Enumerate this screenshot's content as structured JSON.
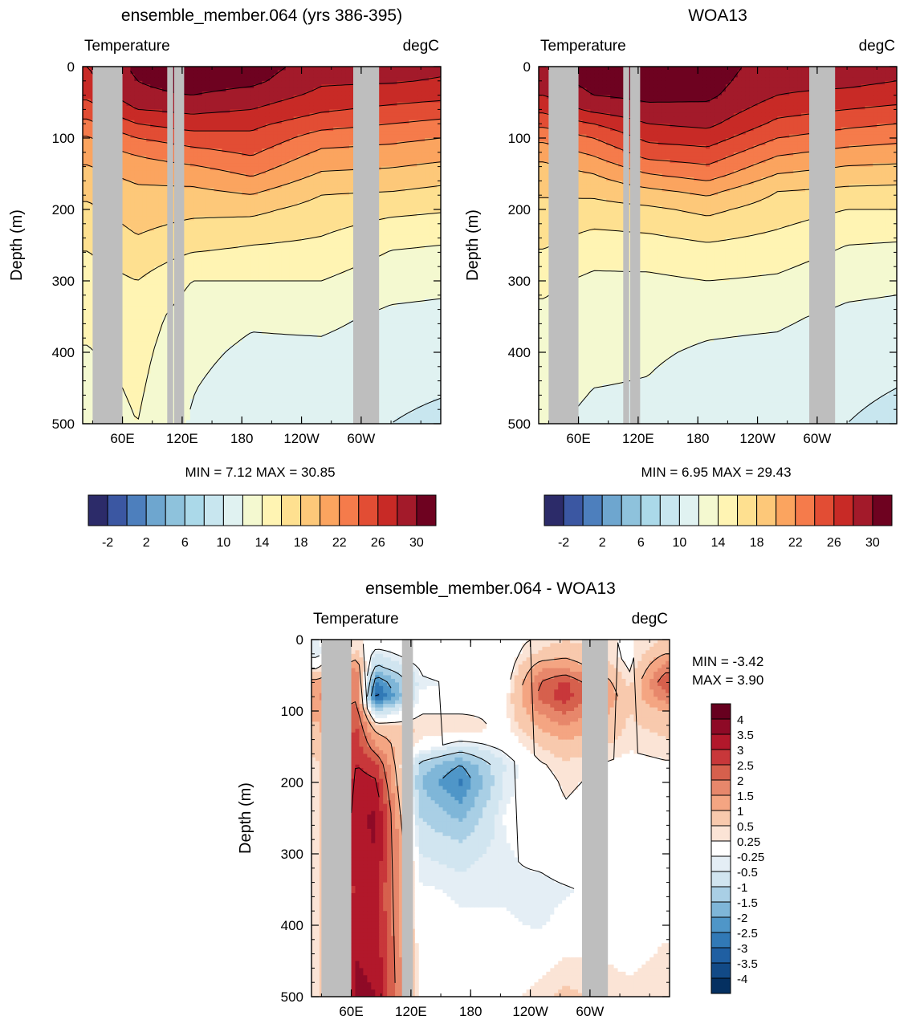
{
  "chart_data": [
    {
      "type": "heatmap",
      "title": "ensemble_member.064 (yrs 386-395)",
      "left_label": "Temperature",
      "right_label": "degC",
      "ylabel": "Depth (m)",
      "y_ticks": [
        "0",
        "100",
        "200",
        "300",
        "400",
        "500"
      ],
      "ylim": [
        0,
        500
      ],
      "y_reversed": true,
      "x_ticks": [
        "60E",
        "120E",
        "180",
        "120W",
        "60W"
      ],
      "x_tick_lon": [
        60,
        120,
        180,
        240,
        300
      ],
      "xlim": [
        20,
        380
      ],
      "stats_text": "MIN =   7.12  MAX =  30.85",
      "min": 7.12,
      "max": 30.85,
      "colorbar_labels": [
        "-2",
        "2",
        "6",
        "10",
        "14",
        "18",
        "22",
        "26",
        "30"
      ],
      "levels": [
        -4,
        -2,
        0,
        2,
        4,
        6,
        8,
        10,
        12,
        14,
        16,
        18,
        20,
        22,
        24,
        26,
        28,
        30
      ],
      "colors": [
        "#2c2b69",
        "#3b57a2",
        "#4d7fbd",
        "#6ea6cf",
        "#8ec2dc",
        "#abd9e9",
        "#c8e6ef",
        "#e0f2f1",
        "#f4f9d0",
        "#fff4b3",
        "#fee090",
        "#fdc879",
        "#fba45f",
        "#f57b4b",
        "#e24d34",
        "#c82a26",
        "#a31a2a",
        "#6e0220"
      ],
      "land_bands_lon": [
        [
          30,
          60
        ],
        [
          105,
          111
        ],
        [
          112,
          122
        ],
        [
          292,
          318
        ]
      ],
      "profile_depth": [
        0,
        20,
        40,
        60,
        80,
        100,
        125,
        150,
        175,
        200,
        250,
        300,
        350,
        400,
        450,
        500
      ],
      "zonal": [
        {
          "lon": 25,
          "temps": [
            26,
            25.5,
            24.5,
            23,
            21.5,
            19.8,
            18.5,
            17.5,
            16.5,
            15.6,
            14.2,
            13,
            12.4,
            11.9,
            11.3,
            10.9
          ]
        },
        {
          "lon": 75,
          "temps": [
            28.5,
            28,
            27.5,
            26,
            24,
            22,
            20,
            18.6,
            17.6,
            17,
            15.6,
            14,
            13,
            12.6,
            12.3,
            12
          ]
        },
        {
          "lon": 130,
          "temps": [
            29.5,
            29,
            28,
            26.5,
            25,
            23,
            21,
            19,
            17.6,
            16.5,
            14.5,
            12,
            11,
            10.5,
            10.1,
            9.8
          ]
        },
        {
          "lon": 190,
          "temps": [
            29,
            28.5,
            27.2,
            26,
            24.5,
            23.5,
            22,
            20.3,
            18.3,
            16.5,
            14,
            12,
            10.3,
            9.6,
            9,
            8.6
          ]
        },
        {
          "lon": 260,
          "temps": [
            27,
            26.3,
            25.5,
            24.3,
            22.8,
            21,
            19.3,
            17.8,
            16.2,
            15.2,
            13.6,
            12,
            10.5,
            9.6,
            9.2,
            8.9
          ]
        },
        {
          "lon": 330,
          "temps": [
            27,
            26.2,
            25,
            23.5,
            22,
            20.5,
            19,
            17.5,
            16,
            14.5,
            12.2,
            10.8,
            9.6,
            9,
            8.5,
            8
          ]
        },
        {
          "lon": 380,
          "temps": [
            26.5,
            25.8,
            24.6,
            23,
            21.5,
            20,
            18.5,
            17,
            15.5,
            14.2,
            12,
            10.6,
            9.4,
            8.8,
            8.2,
            7.5
          ]
        }
      ]
    },
    {
      "type": "heatmap",
      "title": "WOA13",
      "left_label": "Temperature",
      "right_label": "degC",
      "ylabel": "Depth (m)",
      "y_ticks": [
        "0",
        "100",
        "200",
        "300",
        "400",
        "500"
      ],
      "ylim": [
        0,
        500
      ],
      "y_reversed": true,
      "x_ticks": [
        "60E",
        "120E",
        "180",
        "120W",
        "60W"
      ],
      "x_tick_lon": [
        60,
        120,
        180,
        240,
        300
      ],
      "xlim": [
        20,
        380
      ],
      "stats_text": "MIN =   6.95  MAX =  29.43",
      "min": 6.95,
      "max": 29.43,
      "colorbar_labels": [
        "-2",
        "2",
        "6",
        "10",
        "14",
        "18",
        "22",
        "26",
        "30"
      ],
      "levels": [
        -4,
        -2,
        0,
        2,
        4,
        6,
        8,
        10,
        12,
        14,
        16,
        18,
        20,
        22,
        24,
        26,
        28,
        30
      ],
      "colors": [
        "#2c2b69",
        "#3b57a2",
        "#4d7fbd",
        "#6ea6cf",
        "#8ec2dc",
        "#abd9e9",
        "#c8e6ef",
        "#e0f2f1",
        "#f4f9d0",
        "#fff4b3",
        "#fee090",
        "#fdc879",
        "#fba45f",
        "#f57b4b",
        "#e24d34",
        "#c82a26",
        "#a31a2a",
        "#6e0220"
      ],
      "land_bands_lon": [
        [
          30,
          60
        ],
        [
          105,
          111
        ],
        [
          112,
          122
        ],
        [
          292,
          318
        ]
      ],
      "profile_depth": [
        0,
        20,
        40,
        60,
        80,
        100,
        125,
        150,
        175,
        200,
        250,
        300,
        350,
        400,
        450,
        500
      ],
      "zonal": [
        {
          "lon": 25,
          "temps": [
            27.5,
            27,
            26,
            24.5,
            22.5,
            20.5,
            18.5,
            17,
            16.2,
            15.6,
            14.2,
            12.4,
            11.6,
            11,
            10.5,
            10.2
          ]
        },
        {
          "lon": 75,
          "temps": [
            29,
            28.8,
            28,
            26.5,
            24,
            22,
            20,
            18,
            16.5,
            15.2,
            13,
            11.6,
            11,
            10.4,
            10,
            9.7
          ]
        },
        {
          "lon": 130,
          "temps": [
            29.3,
            29,
            28.5,
            27.5,
            26,
            24.5,
            22.5,
            20,
            17.5,
            15.6,
            13.2,
            11.6,
            10.6,
            10.2,
            9.9,
            9.7
          ]
        },
        {
          "lon": 190,
          "temps": [
            29,
            28.8,
            28.4,
            27.5,
            26.5,
            25,
            23,
            21,
            18.5,
            16.5,
            13.8,
            12,
            10.4,
            9.8,
            9.3,
            9
          ]
        },
        {
          "lon": 260,
          "temps": [
            27,
            26.5,
            26,
            24.8,
            23.5,
            22,
            20,
            18,
            16,
            15,
            13.2,
            11.7,
            10.3,
            9.6,
            9.3,
            9
          ]
        },
        {
          "lon": 330,
          "temps": [
            27,
            26.5,
            25.5,
            24,
            22.5,
            21,
            19,
            17.2,
            15.5,
            14,
            12,
            10.6,
            9.6,
            9,
            8.5,
            8
          ]
        },
        {
          "lon": 380,
          "temps": [
            26.5,
            26,
            25,
            23.5,
            22,
            20.5,
            18.8,
            17,
            15.4,
            14,
            11.8,
            10.4,
            9.4,
            8.8,
            8,
            7.3
          ]
        }
      ]
    },
    {
      "type": "heatmap",
      "title": "ensemble_member.064 - WOA13",
      "left_label": "Temperature",
      "right_label": "degC",
      "ylabel": "Depth (m)",
      "y_ticks": [
        "0",
        "100",
        "200",
        "300",
        "400",
        "500"
      ],
      "ylim": [
        0,
        500
      ],
      "y_reversed": true,
      "x_ticks": [
        "60E",
        "120E",
        "180",
        "120W",
        "60W"
      ],
      "x_tick_lon": [
        60,
        120,
        180,
        240,
        300
      ],
      "xlim": [
        20,
        380
      ],
      "stats_text": [
        "MIN =  -3.42",
        "MAX =   3.90"
      ],
      "min": -3.42,
      "max": 3.9,
      "colorbar_labels": [
        "4",
        "3.5",
        "3",
        "2.5",
        "2",
        "1.5",
        "1",
        "0.5",
        "0.25",
        "-0.25",
        "-0.5",
        "-1",
        "-1.5",
        "-2",
        "-2.5",
        "-3",
        "-3.5",
        "-4"
      ],
      "colors": [
        "#67001f",
        "#8e0a26",
        "#b2182b",
        "#c8373a",
        "#d6604d",
        "#e7876b",
        "#f4a582",
        "#f8c9ad",
        "#fbe4d6",
        "#ffffff",
        "#e4eef5",
        "#d1e5f0",
        "#a9cfe5",
        "#7fb6d8",
        "#4f96c8",
        "#3179b6",
        "#1f5fa2",
        "#124a87",
        "#053061"
      ],
      "land_bands_lon": [
        [
          30,
          60
        ],
        [
          111,
          122
        ],
        [
          292,
          318
        ]
      ],
      "profile_depth": [
        0,
        20,
        40,
        60,
        80,
        100,
        125,
        150,
        175,
        200,
        250,
        300,
        350,
        400,
        450,
        500
      ],
      "zonal": [
        {
          "lon": 25,
          "temps": [
            -0.3,
            -0.4,
            0.2,
            1.2,
            1.5,
            1.2,
            0.8,
            0.6,
            0.4,
            0.3,
            0.3,
            0.4,
            0.4,
            0.4,
            0.4,
            0.3
          ]
        },
        {
          "lon": 65,
          "temps": [
            0.3,
            0.6,
            1.6,
            2,
            1.8,
            2.4,
            2.6,
            2.8,
            3,
            3.3,
            3.4,
            3.3,
            3.2,
            3.3,
            3.5,
            3.6
          ]
        },
        {
          "lon": 85,
          "temps": [
            0.2,
            -0.5,
            -1.2,
            -2.6,
            -3.3,
            -1,
            0.8,
            1.6,
            2.6,
            3.1,
            3.6,
            3.5,
            3.1,
            3.2,
            3.4,
            3.5
          ]
        },
        {
          "lon": 130,
          "temps": [
            0.1,
            0.1,
            -0.2,
            -0.3,
            -0.2,
            0.2,
            0.5,
            0,
            -1.2,
            -1.5,
            -1,
            -0.5,
            -0.2,
            -0.1,
            0,
            0
          ]
        },
        {
          "lon": 170,
          "temps": [
            0.1,
            0,
            -0.1,
            -0.2,
            -0.2,
            0.2,
            0.5,
            -0.6,
            -2,
            -2.6,
            -1.6,
            -0.7,
            -0.3,
            -0.2,
            -0.1,
            0
          ]
        },
        {
          "lon": 215,
          "temps": [
            0.1,
            0,
            -0.1,
            0,
            0.1,
            0.2,
            0.1,
            -0.1,
            -0.5,
            -0.4,
            -0.2,
            -0.3,
            -0.3,
            -0.2,
            0,
            0.1
          ]
        },
        {
          "lon": 250,
          "temps": [
            0.3,
            0.6,
            1.4,
            2,
            2.2,
            1.6,
            1,
            0.5,
            0.2,
            0.1,
            0,
            -0.1,
            -0.4,
            -0.3,
            0.1,
            0.4
          ]
        },
        {
          "lon": 275,
          "temps": [
            0.5,
            0.8,
            1.5,
            2.6,
            2.8,
            2.1,
            1.4,
            0.8,
            0.4,
            0.3,
            0.2,
            0.1,
            -0.3,
            -0.1,
            0.3,
            0.6
          ]
        },
        {
          "lon": 340,
          "temps": [
            0.2,
            0.1,
            0.2,
            0.4,
            0.6,
            0.5,
            0.4,
            0.3,
            0.1,
            0.1,
            0,
            0,
            0,
            0.1,
            0.2,
            0.3
          ]
        },
        {
          "lon": 375,
          "temps": [
            0.5,
            1,
            1.8,
            2.4,
            1.8,
            1,
            0.6,
            0.4,
            0.2,
            0.2,
            0.1,
            0.1,
            0.1,
            0.2,
            0.3,
            0.4
          ]
        }
      ]
    }
  ],
  "land_color": "#bebebe"
}
